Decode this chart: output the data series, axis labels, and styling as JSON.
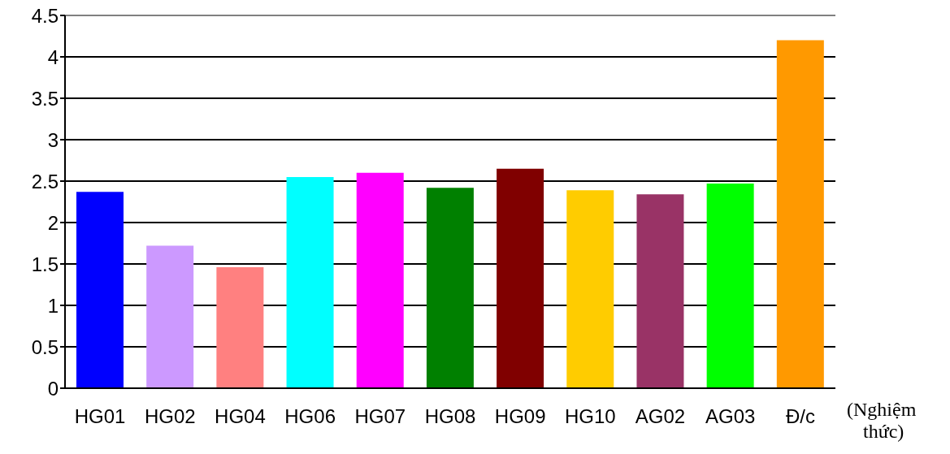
{
  "chart_data": {
    "type": "bar",
    "xlabel": "(Nghiệm thức)",
    "categories": [
      "HG01",
      "HG02",
      "HG04",
      "HG06",
      "HG07",
      "HG08",
      "HG09",
      "HG10",
      "AG02",
      "AG03",
      "Đ/c"
    ],
    "values": [
      2.37,
      1.72,
      1.46,
      2.55,
      2.6,
      2.42,
      2.65,
      2.39,
      2.34,
      2.47,
      4.2
    ],
    "colors": [
      "#0000ff",
      "#cc99ff",
      "#ff8080",
      "#00ffff",
      "#ff00ff",
      "#008000",
      "#800000",
      "#ffcc00",
      "#993366",
      "#00ff00",
      "#ff9900"
    ],
    "ylim": [
      0,
      4.5
    ],
    "yticks": [
      0,
      0.5,
      1,
      1.5,
      2,
      2.5,
      3,
      3.5,
      4,
      4.5
    ],
    "grid": "y"
  }
}
